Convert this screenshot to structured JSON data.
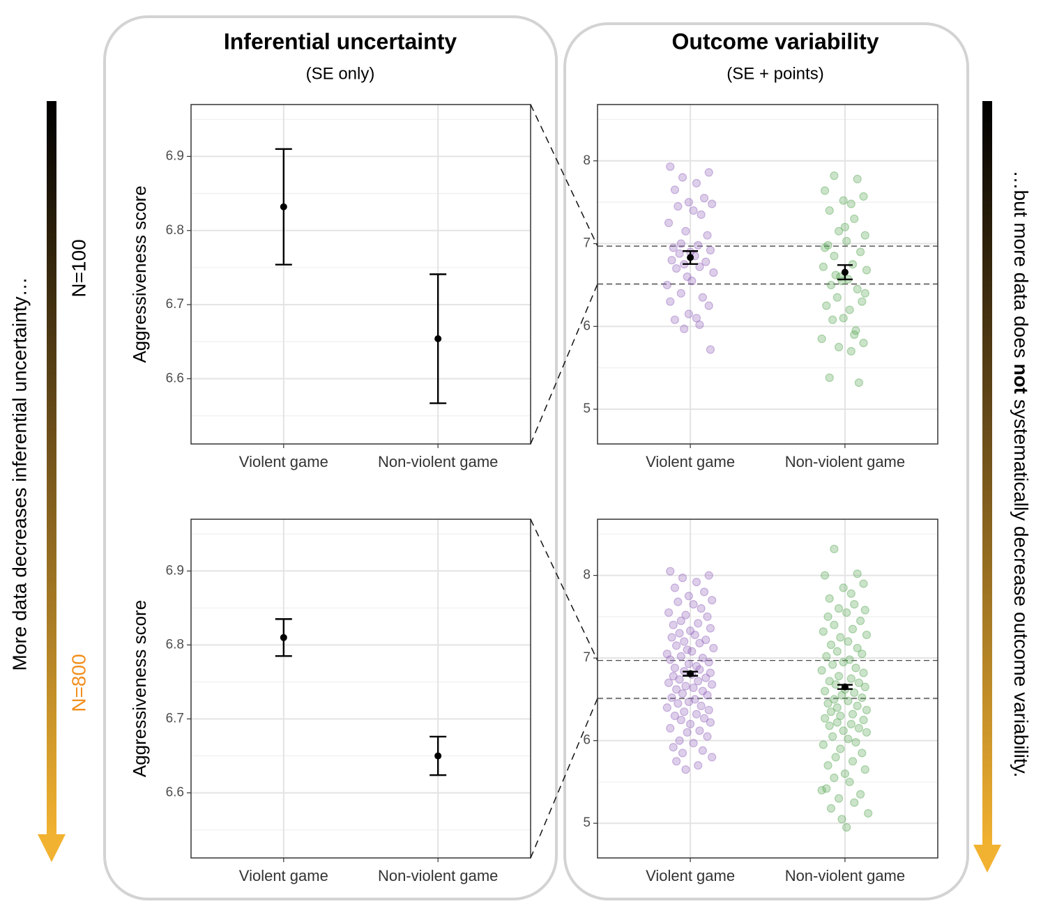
{
  "panels": [
    {
      "title": "Inferential uncertainty",
      "subtitle": "(SE only)"
    },
    {
      "title": "Outcome variability",
      "subtitle": "(SE + points)"
    }
  ],
  "annotations": {
    "left": "More data decreases inferential uncertainty…",
    "right": [
      "…but more data does ",
      "not",
      " systematically decrease outcome variability."
    ],
    "rows": [
      "N=100",
      "N=800"
    ]
  },
  "chart_data": [
    {
      "type": "errorbar",
      "ylabel": "Aggressiveness score",
      "categories": [
        "Violent game",
        "Non-violent game"
      ],
      "values": [
        6.832,
        6.654
      ],
      "errors": [
        0.078,
        0.087
      ],
      "color": "#000000",
      "xlim": [
        0.4,
        2.6
      ],
      "ylim": [
        6.512,
        6.97
      ],
      "yticks": [
        6.6,
        6.7,
        6.8,
        6.9
      ],
      "grid": true
    },
    {
      "type": "scatter",
      "categories": [
        "Violent game",
        "Non-violent game"
      ],
      "values": [
        6.832,
        6.654
      ],
      "errors": [
        0.078,
        0.087
      ],
      "color": "#000000",
      "xlim": [
        0.4,
        2.6
      ],
      "ylim": [
        4.58,
        8.68
      ],
      "yticks": [
        5,
        6,
        7,
        8
      ],
      "grid": true,
      "series": [
        {
          "name": "Violent game",
          "color": "#9467bd",
          "x": [
            0.87,
            1.12,
            0.95,
            1.04,
            0.9,
            1.09,
            0.99,
            1.14,
            0.92,
            1.02,
            1.07,
            0.86,
            0.97,
            1.11,
            0.94,
            1.05,
            0.89,
            1.13,
            1.0,
            0.93,
            1.03,
            0.88,
            1.1,
            0.96,
            1.06,
            0.91,
            1.15,
            0.98,
            1.01,
            0.85,
            0.94,
            1.08,
            0.87,
            1.12,
            0.99,
            1.04,
            0.9,
            1.06,
            0.96,
            1.13
          ],
          "values": [
            7.93,
            7.86,
            7.8,
            7.73,
            7.65,
            7.55,
            7.5,
            7.48,
            7.45,
            7.4,
            7.35,
            7.25,
            7.15,
            7.1,
            7.0,
            6.98,
            6.95,
            6.92,
            6.9,
            6.88,
            6.85,
            6.8,
            6.78,
            6.75,
            6.72,
            6.7,
            6.65,
            6.6,
            6.55,
            6.5,
            6.4,
            6.35,
            6.3,
            6.25,
            6.15,
            6.1,
            6.08,
            6.02,
            5.97,
            5.72
          ]
        },
        {
          "name": "Non-violent game",
          "color": "#5aa857",
          "x": [
            1.93,
            2.08,
            1.87,
            2.12,
            1.99,
            2.04,
            1.9,
            2.06,
            1.96,
            2.13,
            2.01,
            1.89,
            2.1,
            1.93,
            2.05,
            1.86,
            2.14,
            1.97,
            2.02,
            1.91,
            2.08,
            1.95,
            2.11,
            1.88,
            2.03,
            1.99,
            1.92,
            2.07,
            1.85,
            2.12,
            1.96,
            2.04,
            1.9,
            2.09,
            1.94,
            2.13,
            2.0,
            1.87,
            2.06,
            1.98
          ],
          "values": [
            7.82,
            7.78,
            7.64,
            7.57,
            7.52,
            7.48,
            7.4,
            7.3,
            7.15,
            7.1,
            7.03,
            6.98,
            6.9,
            6.85,
            6.75,
            6.72,
            6.68,
            6.6,
            6.57,
            6.5,
            6.45,
            6.35,
            6.3,
            6.25,
            6.2,
            6.1,
            6.08,
            5.95,
            5.85,
            5.8,
            5.75,
            5.7,
            5.38,
            5.32,
            6.62,
            6.4,
            7.2,
            6.95,
            5.9,
            6.55
          ]
        }
      ]
    },
    {
      "type": "errorbar",
      "ylabel": "Aggressiveness score",
      "categories": [
        "Violent game",
        "Non-violent game"
      ],
      "values": [
        6.81,
        6.65
      ],
      "errors": [
        0.025,
        0.026
      ],
      "color": "#000000",
      "xlim": [
        0.4,
        2.6
      ],
      "ylim": [
        6.512,
        6.97
      ],
      "yticks": [
        6.6,
        6.7,
        6.8,
        6.9
      ],
      "grid": true
    },
    {
      "type": "scatter",
      "categories": [
        "Violent game",
        "Non-violent game"
      ],
      "values": [
        6.81,
        6.65
      ],
      "errors": [
        0.025,
        0.026
      ],
      "color": "#000000",
      "xlim": [
        0.4,
        2.6
      ],
      "ylim": [
        4.58,
        8.68
      ],
      "yticks": [
        5,
        6,
        7,
        8
      ],
      "grid": true,
      "series": [
        {
          "name": "Violent game",
          "color": "#9467bd",
          "x": [
            0.87,
            1.12,
            0.95,
            1.04,
            0.9,
            1.09,
            0.99,
            1.14,
            0.92,
            1.02,
            1.07,
            0.86,
            0.97,
            1.11,
            0.94,
            1.05,
            0.89,
            1.13,
            1.0,
            0.93,
            1.03,
            0.88,
            1.1,
            0.96,
            1.06,
            0.91,
            1.15,
            0.98,
            1.01,
            0.85,
            0.94,
            1.08,
            0.87,
            1.12,
            0.99,
            1.04,
            0.9,
            1.06,
            0.96,
            1.13,
            1.01,
            0.89,
            1.1,
            0.93,
            1.05,
            0.86,
            1.14,
            0.97,
            1.02,
            0.91,
            1.08,
            0.95,
            1.11,
            0.88,
            1.03,
            0.99,
            0.92,
            1.07,
            0.85,
            1.12,
            0.96,
            1.04,
            0.9,
            1.09,
            0.94,
            1.13,
            1.0,
            0.87,
            1.06,
            0.98,
            1.11,
            0.93,
            1.02,
            0.89,
            1.08,
            0.95,
            1.14,
            0.91,
            1.05,
            0.97
          ],
          "values": [
            8.05,
            8.0,
            7.97,
            7.92,
            7.85,
            7.8,
            7.75,
            7.7,
            7.68,
            7.65,
            7.6,
            7.55,
            7.52,
            7.5,
            7.45,
            7.42,
            7.4,
            7.36,
            7.33,
            7.3,
            7.28,
            7.25,
            7.22,
            7.2,
            7.18,
            7.15,
            7.12,
            7.1,
            7.08,
            7.05,
            7.02,
            7.0,
            6.98,
            6.95,
            6.93,
            6.9,
            6.88,
            6.86,
            6.84,
            6.82,
            6.8,
            6.78,
            6.76,
            6.74,
            6.72,
            6.7,
            6.68,
            6.66,
            6.64,
            6.62,
            6.6,
            6.57,
            6.55,
            6.52,
            6.5,
            6.47,
            6.45,
            6.42,
            6.4,
            6.37,
            6.35,
            6.32,
            6.3,
            6.27,
            6.25,
            6.22,
            6.2,
            6.15,
            6.12,
            6.1,
            6.05,
            6.0,
            5.97,
            5.92,
            5.88,
            5.85,
            5.8,
            5.75,
            5.7,
            5.65
          ]
        },
        {
          "name": "Non-violent game",
          "color": "#5aa857",
          "x": [
            1.93,
            2.08,
            1.87,
            2.12,
            1.99,
            2.04,
            1.9,
            2.06,
            1.96,
            2.13,
            2.01,
            1.89,
            2.1,
            1.93,
            2.05,
            1.86,
            2.14,
            1.97,
            2.02,
            1.91,
            2.08,
            1.95,
            2.11,
            1.88,
            2.03,
            1.99,
            1.92,
            2.07,
            1.85,
            2.12,
            1.96,
            2.04,
            1.9,
            2.09,
            1.94,
            2.13,
            2.0,
            1.87,
            2.06,
            1.98,
            2.11,
            1.93,
            2.02,
            1.89,
            2.08,
            1.95,
            2.14,
            1.91,
            2.05,
            1.97,
            1.87,
            2.12,
            1.95,
            2.04,
            1.9,
            2.09,
            1.99,
            2.14,
            1.92,
            2.02,
            2.07,
            1.86,
            1.97,
            2.11,
            1.94,
            2.05,
            1.89,
            2.13,
            2.0,
            1.93,
            2.03,
            1.88,
            2.1,
            1.96,
            2.06,
            1.91,
            2.15,
            1.98,
            2.01,
            1.85
          ],
          "values": [
            8.32,
            8.02,
            8.0,
            7.9,
            7.85,
            7.78,
            7.72,
            7.65,
            7.6,
            7.58,
            7.55,
            7.5,
            7.45,
            7.4,
            7.35,
            7.32,
            7.28,
            7.25,
            7.2,
            7.16,
            7.12,
            7.08,
            7.05,
            7.02,
            6.98,
            6.95,
            6.92,
            6.88,
            6.85,
            6.82,
            6.78,
            6.75,
            6.72,
            6.7,
            6.68,
            6.65,
            6.62,
            6.6,
            6.58,
            6.55,
            6.52,
            6.5,
            6.48,
            6.45,
            6.42,
            6.4,
            6.37,
            6.35,
            6.32,
            6.3,
            6.27,
            6.25,
            6.22,
            6.2,
            6.18,
            6.15,
            6.12,
            6.1,
            6.05,
            6.02,
            5.98,
            5.95,
            5.9,
            5.85,
            5.8,
            5.75,
            5.7,
            5.65,
            5.6,
            5.55,
            5.5,
            5.42,
            5.35,
            5.3,
            5.25,
            5.18,
            5.12,
            5.05,
            4.95,
            5.4
          ]
        }
      ]
    }
  ]
}
